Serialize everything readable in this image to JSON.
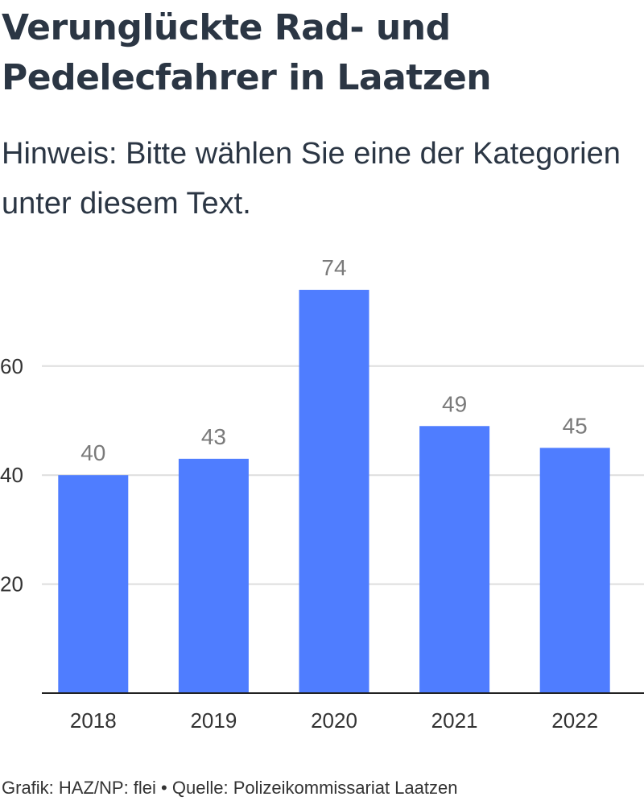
{
  "header": {
    "title": "Verunglückte Rad- und Pedelecfahrer in Laatzen",
    "subtitle": "Hinweis: Bitte wählen Sie eine der Kategorien unter diesem Text."
  },
  "footer": {
    "credit": "Grafik: HAZ/NP: flei",
    "separator": "•",
    "source": "Quelle: Polizeikommissariat Laatzen"
  },
  "colors": {
    "bar": "#4f7dff",
    "grid": "#dddddd",
    "axis": "#222222"
  },
  "chart_data": {
    "type": "bar",
    "title": "Verunglückte Rad- und Pedelecfahrer in Laatzen",
    "xlabel": "",
    "ylabel": "",
    "categories": [
      "2018",
      "2019",
      "2020",
      "2021",
      "2022"
    ],
    "values": [
      40,
      43,
      74,
      49,
      45
    ],
    "data_labels": [
      "40",
      "43",
      "74",
      "49",
      "45"
    ],
    "yticks": [
      20,
      40,
      60
    ],
    "ytick_labels": [
      "20",
      "40",
      "60"
    ],
    "ylim": [
      0,
      80
    ],
    "grid": true,
    "legend": "none"
  }
}
